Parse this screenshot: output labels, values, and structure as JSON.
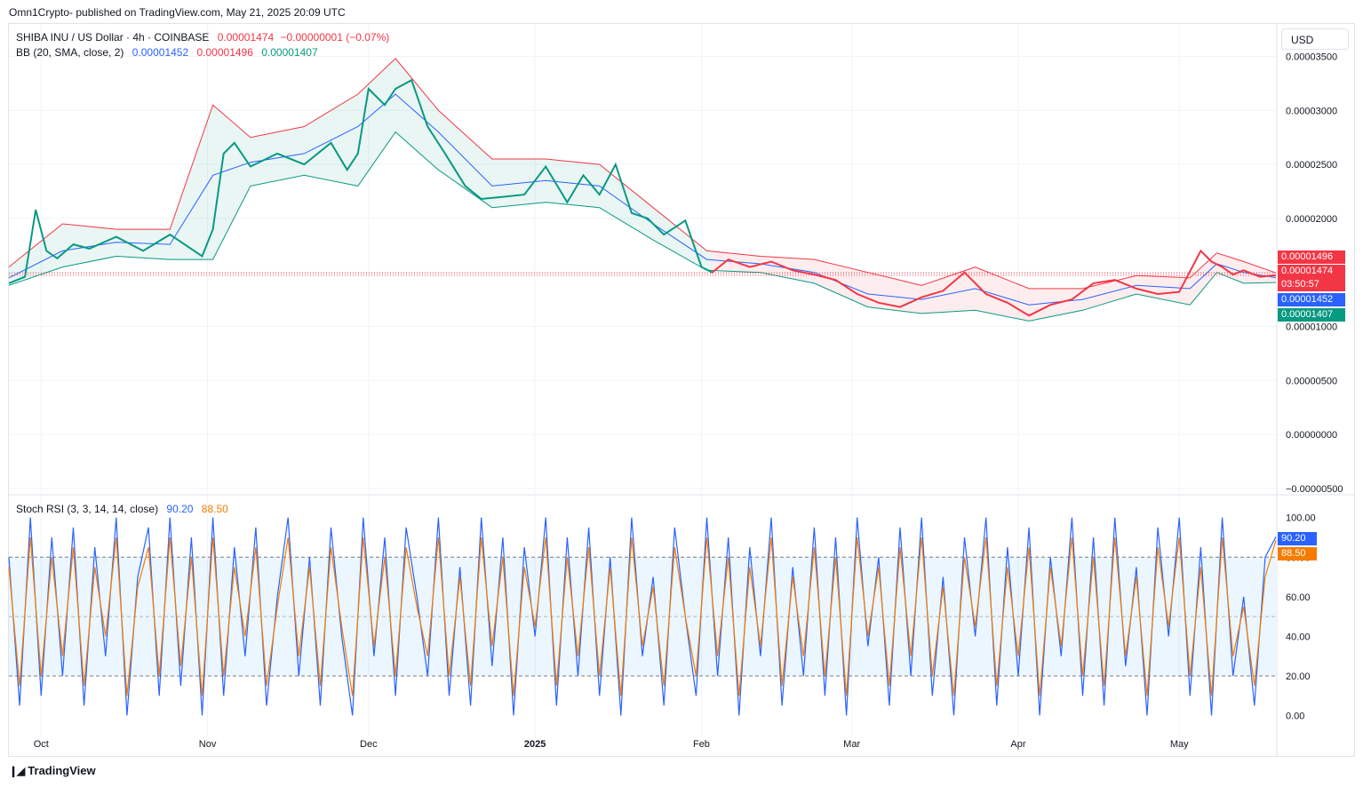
{
  "header": {
    "publisher": "Omn1Crypto- published on TradingView.com, May 21, 2025 20:09 UTC"
  },
  "legend": {
    "symbol": "SHIBA INU / US Dollar · 4h · COINBASE",
    "price": "0.00001474",
    "change": "−0.00000001 (−0.07%)",
    "bb_label": "BB (20, SMA, close, 2)",
    "bb_basis": "0.00001452",
    "bb_upper": "0.00001496",
    "bb_lower": "0.00001407",
    "stoch_label": "Stoch RSI (3, 3, 14, 14, close)",
    "stoch_k": "90.20",
    "stoch_d": "88.50"
  },
  "currency_button": "USD",
  "price_tags": {
    "upper": "0.00001496",
    "last": "0.00001474",
    "countdown": "03:50:57",
    "basis": "0.00001452",
    "lower": "0.00001407"
  },
  "colors": {
    "up": "#089981",
    "down": "#f23645",
    "basis": "#2962ff",
    "upper": "#f23645",
    "lower": "#089981",
    "k": "#2962ff",
    "d": "#f57c00"
  },
  "footer": {
    "brand": "TradingView"
  },
  "chart_data": [
    {
      "type": "line",
      "title": "SHIBA INU / US Dollar · 4h · COINBASE",
      "y_ticks": [
        "0.00003500",
        "0.00003000",
        "0.00002500",
        "0.00002000",
        "0.00001500",
        "0.00001000",
        "0.00000500",
        "0.00000000",
        "−0.00000500"
      ],
      "y_tick_values": [
        3.5e-05,
        3e-05,
        2.5e-05,
        2e-05,
        1.5e-05,
        1e-05,
        5e-06,
        0,
        -5e-06
      ],
      "ylim": [
        -5.5e-06,
        3.8e-05
      ],
      "x_ticks": [
        "Oct",
        "Nov",
        "Dec",
        "2025",
        "Feb",
        "Mar",
        "Apr",
        "May"
      ],
      "x_tick_days": [
        6,
        37,
        67,
        98,
        129,
        157,
        188,
        218
      ],
      "x_range_days": [
        0,
        236
      ],
      "series": [
        {
          "name": "close",
          "days": [
            0,
            3,
            5,
            7,
            9,
            12,
            15,
            20,
            25,
            30,
            36,
            38,
            40,
            42,
            45,
            50,
            55,
            60,
            63,
            65,
            67,
            70,
            72,
            75,
            78,
            81,
            85,
            88,
            92,
            96,
            100,
            104,
            107,
            110,
            113,
            116,
            119,
            122,
            126,
            129,
            131,
            134,
            138,
            142,
            146,
            150,
            154,
            158,
            162,
            166,
            170,
            174,
            178,
            182,
            186,
            190,
            194,
            198,
            202,
            206,
            210,
            214,
            218,
            222,
            224,
            226,
            228,
            230,
            233,
            236
          ],
          "values": [
            1.4e-05,
            1.46e-05,
            2.08e-05,
            1.7e-05,
            1.63e-05,
            1.76e-05,
            1.72e-05,
            1.83e-05,
            1.7e-05,
            1.85e-05,
            1.65e-05,
            1.9e-05,
            2.6e-05,
            2.7e-05,
            2.48e-05,
            2.6e-05,
            2.5e-05,
            2.7e-05,
            2.45e-05,
            2.6e-05,
            3.2e-05,
            3.05e-05,
            3.2e-05,
            3.28e-05,
            2.85e-05,
            2.62e-05,
            2.3e-05,
            2.18e-05,
            2.2e-05,
            2.22e-05,
            2.48e-05,
            2.15e-05,
            2.4e-05,
            2.22e-05,
            2.5e-05,
            2.05e-05,
            2e-05,
            1.85e-05,
            1.98e-05,
            1.55e-05,
            1.5e-05,
            1.62e-05,
            1.55e-05,
            1.6e-05,
            1.52e-05,
            1.48e-05,
            1.43e-05,
            1.3e-05,
            1.22e-05,
            1.18e-05,
            1.27e-05,
            1.33e-05,
            1.5e-05,
            1.3e-05,
            1.22e-05,
            1.1e-05,
            1.2e-05,
            1.25e-05,
            1.4e-05,
            1.43e-05,
            1.35e-05,
            1.3e-05,
            1.32e-05,
            1.7e-05,
            1.6e-05,
            1.55e-05,
            1.48e-05,
            1.52e-05,
            1.46e-05,
            1.474e-05
          ]
        },
        {
          "name": "BB basis",
          "days": [
            0,
            10,
            20,
            30,
            38,
            45,
            55,
            65,
            72,
            80,
            90,
            100,
            110,
            120,
            130,
            140,
            150,
            160,
            170,
            180,
            190,
            200,
            210,
            220,
            225,
            230,
            236
          ],
          "values": [
            1.45e-05,
            1.7e-05,
            1.78e-05,
            1.76e-05,
            2.4e-05,
            2.52e-05,
            2.6e-05,
            2.85e-05,
            3.15e-05,
            2.8e-05,
            2.3e-05,
            2.35e-05,
            2.3e-05,
            1.95e-05,
            1.62e-05,
            1.58e-05,
            1.5e-05,
            1.3e-05,
            1.25e-05,
            1.35e-05,
            1.2e-05,
            1.25e-05,
            1.38e-05,
            1.35e-05,
            1.58e-05,
            1.5e-05,
            1.452e-05
          ]
        },
        {
          "name": "BB upper",
          "days": [
            0,
            10,
            20,
            30,
            38,
            45,
            55,
            65,
            72,
            80,
            90,
            100,
            110,
            120,
            130,
            140,
            150,
            160,
            170,
            180,
            190,
            200,
            210,
            220,
            225,
            230,
            236
          ],
          "values": [
            1.55e-05,
            1.95e-05,
            1.9e-05,
            1.9e-05,
            3.05e-05,
            2.75e-05,
            2.85e-05,
            3.15e-05,
            3.48e-05,
            3e-05,
            2.55e-05,
            2.55e-05,
            2.5e-05,
            2.1e-05,
            1.7e-05,
            1.65e-05,
            1.62e-05,
            1.5e-05,
            1.38e-05,
            1.55e-05,
            1.35e-05,
            1.35e-05,
            1.47e-05,
            1.45e-05,
            1.68e-05,
            1.6e-05,
            1.496e-05
          ]
        },
        {
          "name": "BB lower",
          "days": [
            0,
            10,
            20,
            30,
            38,
            45,
            55,
            65,
            72,
            80,
            90,
            100,
            110,
            120,
            130,
            140,
            150,
            160,
            170,
            180,
            190,
            200,
            210,
            220,
            225,
            230,
            236
          ],
          "values": [
            1.38e-05,
            1.55e-05,
            1.65e-05,
            1.62e-05,
            1.62e-05,
            2.3e-05,
            2.4e-05,
            2.3e-05,
            2.8e-05,
            2.45e-05,
            2.1e-05,
            2.15e-05,
            2.1e-05,
            1.8e-05,
            1.52e-05,
            1.5e-05,
            1.4e-05,
            1.18e-05,
            1.12e-05,
            1.15e-05,
            1.05e-05,
            1.15e-05,
            1.3e-05,
            1.2e-05,
            1.5e-05,
            1.4e-05,
            1.407e-05
          ]
        }
      ]
    },
    {
      "type": "line",
      "title": "Stoch RSI (3, 3, 14, 14, close)",
      "y_ticks": [
        "100.00",
        "80.00",
        "60.00",
        "40.00",
        "20.00",
        "0.00"
      ],
      "y_tick_values": [
        100,
        80,
        60,
        40,
        20,
        0
      ],
      "ylim": [
        -2,
        103
      ],
      "band": [
        20,
        80
      ],
      "x_range_days": [
        0,
        236
      ],
      "series": [
        {
          "name": "K",
          "days": [
            0,
            2,
            4,
            6,
            8,
            10,
            12,
            14,
            16,
            18,
            20,
            22,
            24,
            26,
            28,
            30,
            32,
            34,
            36,
            38,
            40,
            42,
            44,
            46,
            48,
            50,
            52,
            54,
            56,
            58,
            60,
            62,
            64,
            66,
            68,
            70,
            72,
            74,
            76,
            78,
            80,
            82,
            84,
            86,
            88,
            90,
            92,
            94,
            96,
            98,
            100,
            102,
            104,
            106,
            108,
            110,
            112,
            114,
            116,
            118,
            120,
            122,
            124,
            126,
            128,
            130,
            132,
            134,
            136,
            138,
            140,
            142,
            144,
            146,
            148,
            150,
            152,
            154,
            156,
            158,
            160,
            162,
            164,
            166,
            168,
            170,
            172,
            174,
            176,
            178,
            180,
            182,
            184,
            186,
            188,
            190,
            192,
            194,
            196,
            198,
            200,
            202,
            204,
            206,
            208,
            210,
            212,
            214,
            216,
            218,
            220,
            222,
            224,
            226,
            228,
            230,
            232,
            234,
            236
          ],
          "values": [
            80,
            5,
            100,
            10,
            90,
            20,
            95,
            5,
            85,
            30,
            100,
            0,
            70,
            95,
            10,
            100,
            15,
            90,
            0,
            100,
            10,
            85,
            30,
            95,
            5,
            60,
            100,
            20,
            80,
            5,
            95,
            40,
            0,
            100,
            30,
            90,
            10,
            95,
            60,
            20,
            100,
            10,
            75,
            5,
            100,
            25,
            90,
            0,
            85,
            40,
            100,
            5,
            90,
            20,
            95,
            10,
            80,
            0,
            100,
            30,
            70,
            5,
            95,
            50,
            10,
            100,
            20,
            90,
            0,
            85,
            30,
            100,
            5,
            75,
            20,
            95,
            10,
            90,
            0,
            100,
            35,
            80,
            5,
            95,
            20,
            100,
            10,
            70,
            0,
            90,
            40,
            100,
            5,
            85,
            20,
            95,
            0,
            80,
            30,
            100,
            10,
            90,
            5,
            100,
            25,
            75,
            0,
            95,
            40,
            100,
            10,
            85,
            0,
            100,
            20,
            60,
            5,
            80,
            90.2
          ]
        },
        {
          "name": "D",
          "days": [
            0,
            2,
            4,
            6,
            8,
            10,
            12,
            14,
            16,
            18,
            20,
            22,
            24,
            26,
            28,
            30,
            32,
            34,
            36,
            38,
            40,
            42,
            44,
            46,
            48,
            50,
            52,
            54,
            56,
            58,
            60,
            62,
            64,
            66,
            68,
            70,
            72,
            74,
            76,
            78,
            80,
            82,
            84,
            86,
            88,
            90,
            92,
            94,
            96,
            98,
            100,
            102,
            104,
            106,
            108,
            110,
            112,
            114,
            116,
            118,
            120,
            122,
            124,
            126,
            128,
            130,
            132,
            134,
            136,
            138,
            140,
            142,
            144,
            146,
            148,
            150,
            152,
            154,
            156,
            158,
            160,
            162,
            164,
            166,
            168,
            170,
            172,
            174,
            176,
            178,
            180,
            182,
            184,
            186,
            188,
            190,
            192,
            194,
            196,
            198,
            200,
            202,
            204,
            206,
            208,
            210,
            212,
            214,
            216,
            218,
            220,
            222,
            224,
            226,
            228,
            230,
            232,
            234,
            236
          ],
          "values": [
            75,
            15,
            90,
            20,
            80,
            30,
            85,
            15,
            75,
            40,
            90,
            10,
            65,
            85,
            20,
            90,
            25,
            80,
            10,
            90,
            20,
            75,
            40,
            85,
            15,
            55,
            90,
            30,
            75,
            15,
            85,
            45,
            10,
            90,
            35,
            80,
            20,
            85,
            55,
            30,
            90,
            20,
            70,
            15,
            90,
            35,
            80,
            10,
            75,
            45,
            90,
            15,
            80,
            30,
            85,
            20,
            75,
            10,
            90,
            35,
            65,
            15,
            85,
            50,
            20,
            90,
            30,
            80,
            10,
            75,
            35,
            90,
            15,
            70,
            30,
            85,
            20,
            80,
            10,
            90,
            40,
            75,
            15,
            85,
            30,
            90,
            20,
            65,
            10,
            80,
            45,
            90,
            15,
            75,
            30,
            85,
            10,
            75,
            35,
            90,
            20,
            80,
            15,
            90,
            30,
            70,
            10,
            85,
            45,
            90,
            20,
            75,
            10,
            90,
            30,
            55,
            15,
            70,
            88.5
          ]
        }
      ]
    }
  ]
}
